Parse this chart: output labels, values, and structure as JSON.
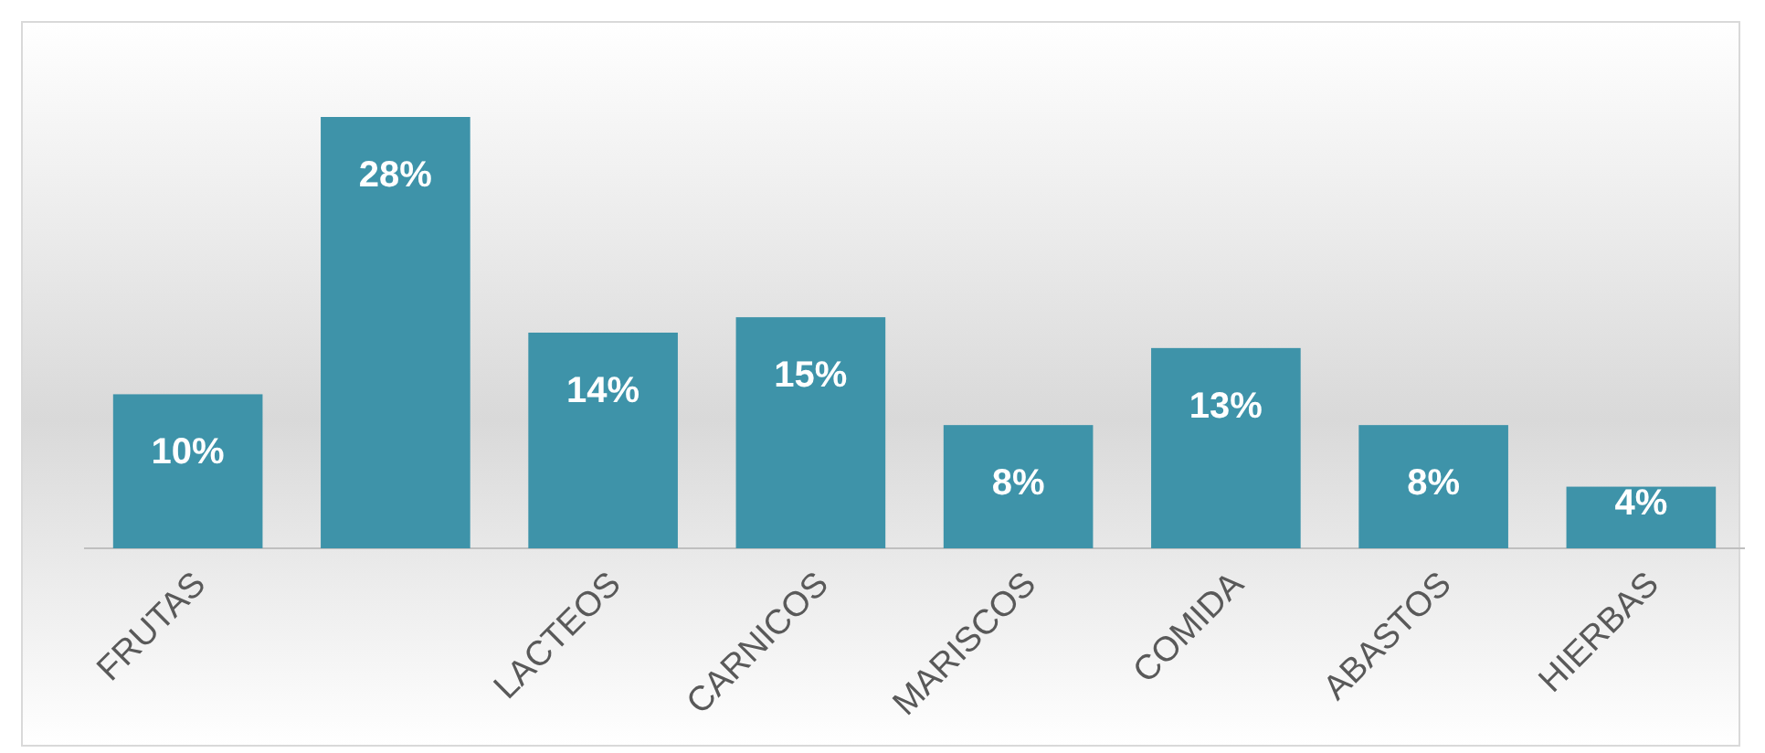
{
  "chart_data": {
    "type": "bar",
    "categories": [
      "FRUTAS",
      null,
      "LACTEOS",
      "CARNICOS",
      "MARISCOS",
      "COMIDA",
      "ABASTOS",
      "HIERBAS"
    ],
    "values": [
      10,
      28,
      14,
      15,
      8,
      13,
      8,
      4
    ],
    "value_labels": [
      "10%",
      "28%",
      "14%",
      "15%",
      "8%",
      "13%",
      "8%",
      "4%"
    ],
    "color": "#3e93a9"
  }
}
